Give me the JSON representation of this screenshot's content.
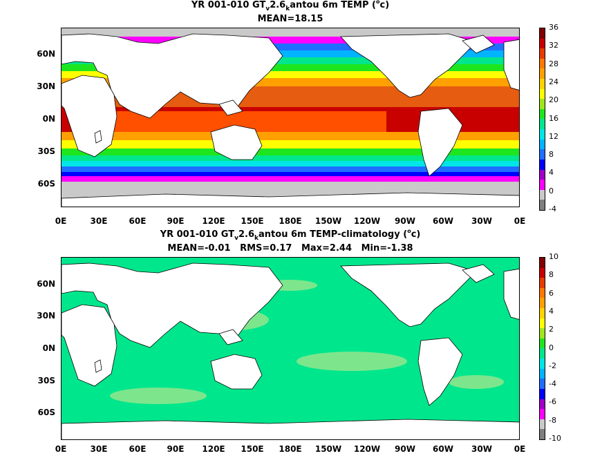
{
  "panels": [
    {
      "title_prefix": "YR 001-010 GT",
      "title_sub1": "v",
      "title_mid": "2.6",
      "title_sub2": "k",
      "title_suffix": "antou 6m TEMP (",
      "title_sup": "o",
      "title_unit": "c)",
      "stats": "MEAN=18.15",
      "colorbar_labels": [
        "36",
        "32",
        "28",
        "24",
        "20",
        "16",
        "12",
        "8",
        "4",
        "0",
        "-4"
      ]
    },
    {
      "title_prefix": "YR 001-010 GT",
      "title_sub1": "v",
      "title_mid": "2.6",
      "title_sub2": "k",
      "title_suffix": "antou 6m TEMP-climatology (",
      "title_sup": "o",
      "title_unit": "c)",
      "stats": "MEAN=-0.01   RMS=0.17   Max=2.44   Min=-1.38",
      "colorbar_labels": [
        "10",
        "8",
        "6",
        "4",
        "2",
        "0",
        "-2",
        "-4",
        "-6",
        "-8",
        "-10"
      ]
    }
  ],
  "lat_labels": [
    "60N",
    "30N",
    "0N",
    "30S",
    "60S"
  ],
  "lon_labels": [
    "0E",
    "30E",
    "60E",
    "90E",
    "120E",
    "150E",
    "180E",
    "150W",
    "120W",
    "90W",
    "60W",
    "30W",
    "0E"
  ],
  "colorbar_colors": [
    "#7f7f7f",
    "#c9c9c9",
    "#ff00ff",
    "#a000c8",
    "#0000ff",
    "#1e6eff",
    "#00b4ff",
    "#00e6e6",
    "#00e68c",
    "#1ee61e",
    "#a0e61e",
    "#ffff00",
    "#ffd200",
    "#ffa000",
    "#ff7800",
    "#e63c00",
    "#c80000",
    "#820000"
  ]
}
